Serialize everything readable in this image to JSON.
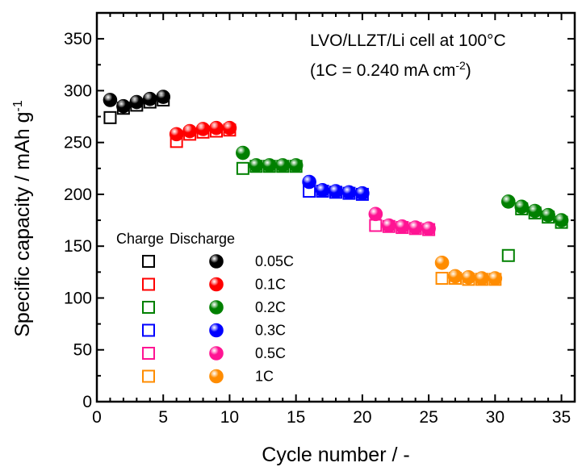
{
  "chart_data": {
    "type": "scatter",
    "title": "",
    "xlabel": "Cycle number / -",
    "ylabel_main": "Specific capacity / mAh g",
    "ylabel_sup": "-1",
    "xlim": [
      0,
      36
    ],
    "ylim": [
      0,
      375
    ],
    "x_ticks": [
      0,
      5,
      10,
      15,
      20,
      25,
      30,
      35
    ],
    "y_ticks": [
      0,
      50,
      100,
      150,
      200,
      250,
      300,
      350
    ],
    "grid": false,
    "annotation_line1": "LVO/LLZT/Li cell at 100°C",
    "annotation_line2_pre": "(1C = 0.240 mA cm",
    "annotation_line2_sup": "-2",
    "annotation_line2_post": ")",
    "legend": {
      "position": "lower-left",
      "header_charge": "Charge",
      "header_discharge": "Discharge",
      "entries": [
        {
          "label": "0.05C",
          "color": "#000000"
        },
        {
          "label": "0.1C",
          "color": "#ff0000"
        },
        {
          "label": "0.2C",
          "color": "#008000"
        },
        {
          "label": "0.3C",
          "color": "#0000ff"
        },
        {
          "label": "0.5C",
          "color": "#ff1493"
        },
        {
          "label": "1C",
          "color": "#ff8c00"
        }
      ]
    },
    "series": [
      {
        "rate": "0.05C",
        "color": "#000000",
        "cycles": [
          1,
          2,
          3,
          4,
          5
        ],
        "charge": [
          274,
          283,
          286,
          289,
          291
        ],
        "discharge": [
          291,
          285,
          289,
          292,
          294
        ]
      },
      {
        "rate": "0.1C",
        "color": "#ff0000",
        "cycles": [
          6,
          7,
          8,
          9,
          10
        ],
        "charge": [
          251,
          258,
          260,
          261,
          262
        ],
        "discharge": [
          258,
          261,
          263,
          264,
          264
        ]
      },
      {
        "rate": "0.2C",
        "color": "#008000",
        "cycles": [
          11,
          12,
          13,
          14,
          15
        ],
        "charge": [
          225,
          227,
          227,
          227,
          227
        ],
        "discharge": [
          240,
          228,
          228,
          228,
          228
        ]
      },
      {
        "rate": "0.3C",
        "color": "#0000ff",
        "cycles": [
          16,
          17,
          18,
          19,
          20
        ],
        "charge": [
          203,
          203,
          202,
          201,
          200
        ],
        "discharge": [
          212,
          204,
          203,
          202,
          201
        ]
      },
      {
        "rate": "0.5C",
        "color": "#ff1493",
        "cycles": [
          21,
          22,
          23,
          24,
          25
        ],
        "charge": [
          170,
          169,
          168,
          167,
          166
        ],
        "discharge": [
          181,
          170,
          169,
          168,
          167
        ]
      },
      {
        "rate": "1C",
        "color": "#ff8c00",
        "cycles": [
          26,
          27,
          28,
          29,
          30
        ],
        "charge": [
          119,
          119,
          118,
          118,
          118
        ],
        "discharge": [
          134,
          121,
          120,
          119,
          119
        ]
      },
      {
        "rate": "0.2C",
        "color": "#008000",
        "cycles": [
          31,
          32,
          33,
          34,
          35
        ],
        "charge": [
          141,
          186,
          182,
          178,
          173
        ],
        "discharge": [
          193,
          188,
          184,
          180,
          175
        ]
      }
    ]
  }
}
